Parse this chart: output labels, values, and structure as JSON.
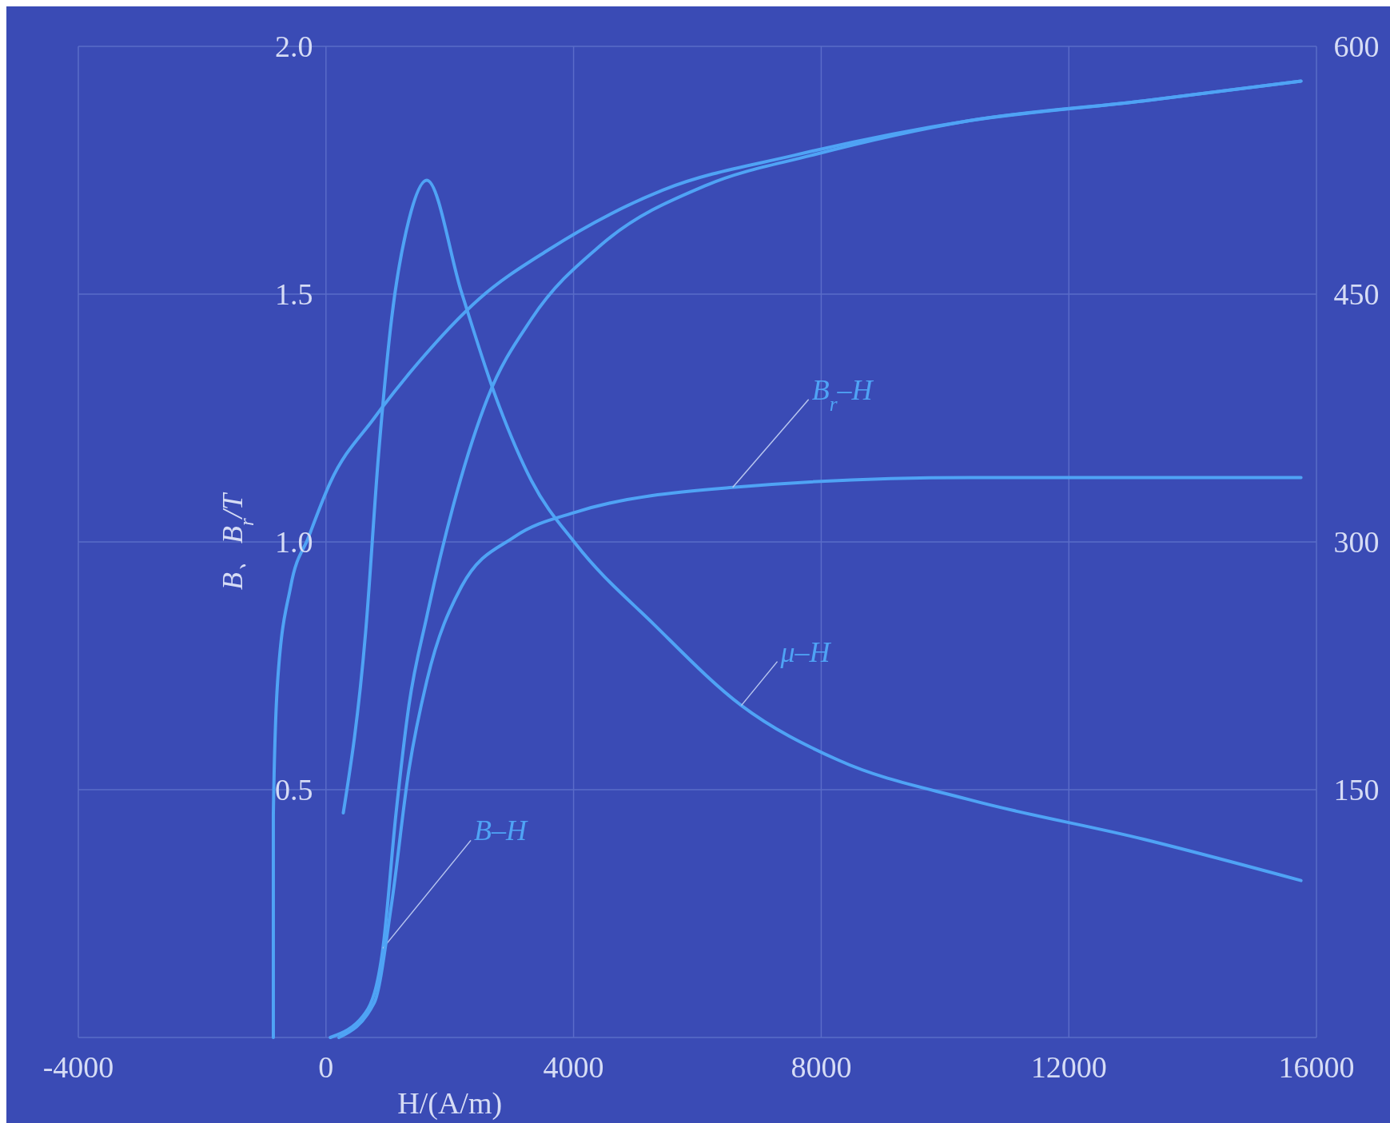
{
  "chart_data": {
    "type": "line",
    "xlabel": "H/(A/m)",
    "ylabel": "B、B$_{r}$/T",
    "xlim": [
      -4000,
      16000
    ],
    "xticks": [
      -4000,
      0,
      4000,
      8000,
      12000,
      16000
    ],
    "ylim": [
      0,
      2.0
    ],
    "yticks": [
      {
        "value": 0,
        "label": null
      },
      0.5,
      {
        "value": 1,
        "label": "1.0"
      },
      1.5,
      {
        "value": 2,
        "label": "2.0"
      }
    ],
    "y2lim": [
      0,
      600
    ],
    "y2ticks": [
      150,
      300,
      450,
      600
    ],
    "grid": true,
    "marker": "none",
    "line_style": "solid",
    "series": [
      {
        "color": "#4fa3f5",
        "x": [
          -850,
          -850,
          -780,
          -570,
          -280,
          70,
          780,
          1480,
          2470,
          3600,
          5440,
          7560,
          10390,
          13210,
          15750
        ],
        "values": [
          0,
          0.45,
          0.72,
          0.91,
          1.01,
          1.12,
          1.25,
          1.36,
          1.49,
          1.59,
          1.71,
          1.78,
          1.85,
          1.89,
          1.93
        ]
      },
      {
        "name": "B–H",
        "color": "#4fa3f5",
        "x": [
          70,
          640,
          920,
          1130,
          1340,
          1630,
          2050,
          2610,
          3320,
          4450,
          6150,
          7840,
          10390,
          13210,
          15750
        ],
        "values": [
          0,
          0.05,
          0.18,
          0.45,
          0.67,
          0.85,
          1.07,
          1.29,
          1.45,
          1.6,
          1.72,
          1.78,
          1.85,
          1.89,
          1.93
        ]
      },
      {
        "name": "B$_{r}$–H",
        "color": "#4fa3f5",
        "x": [
          210,
          780,
          1060,
          1340,
          1630,
          2190,
          3040,
          4030,
          6570,
          10390,
          15750
        ],
        "values": [
          0,
          0.07,
          0.27,
          0.54,
          0.72,
          0.91,
          1.01,
          1.06,
          1.11,
          1.13,
          1.13
        ]
      },
      {
        "name": "μ–H",
        "color": "#4fa3f5",
        "axis": "y2",
        "x": [
          280,
          640,
          850,
          1060,
          1340,
          1630,
          2190,
          2760,
          3320,
          4030,
          5300,
          6710,
          8270,
          10390,
          13210,
          15750
        ],
        "values": [
          136,
          245,
          353,
          435,
          495,
          519,
          451,
          386,
          337,
          299,
          250,
          201,
          168,
          144,
          120,
          95
        ]
      }
    ]
  }
}
